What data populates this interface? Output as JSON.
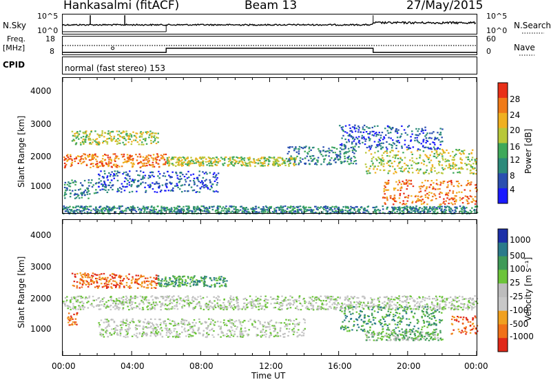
{
  "header": {
    "station": "Hankasalmi (fitACF)",
    "beam": "Beam 13",
    "date": "27/May/2015"
  },
  "strip": {
    "nsky_label": "N.Sky",
    "nsearch_label": "N.Search",
    "noise_ticks_left": [
      "10^5",
      "10^0"
    ],
    "noise_ticks_right": [
      "10^5",
      "10^0"
    ],
    "freq_label_1": "Freq.",
    "freq_label_2": "[MHz]",
    "freq_ticks_left": [
      "18",
      "8"
    ],
    "nave_ticks_right": [
      "60",
      "0"
    ],
    "nave_label": "Nave",
    "cpid_label": "CPID",
    "cpid_text": "normal (fast stereo) 153"
  },
  "chart_data": [
    {
      "type": "heatmap",
      "panel": "power",
      "ylabel": "Slant Range [km]",
      "yticks": [
        "1000",
        "2000",
        "3000",
        "4000"
      ],
      "ylim": [
        200,
        4600
      ],
      "xlim": [
        0,
        24
      ],
      "colorbar": {
        "label": "Power [dB]",
        "ticks": [
          "4",
          "8",
          "12",
          "16",
          "20",
          "24",
          "28"
        ],
        "colors": [
          "#1a1aff",
          "#2a4fb0",
          "#2c8a7a",
          "#3fa95a",
          "#b8c83a",
          "#f0b020",
          "#f07a18",
          "#e83018"
        ]
      },
      "bands": [
        {
          "x0": 0.0,
          "x1": 6.0,
          "y0": 1700,
          "y1": 2150,
          "level": 6
        },
        {
          "x0": 6.0,
          "x1": 13.5,
          "y0": 1750,
          "y1": 2050,
          "level": 4
        },
        {
          "x0": 0.5,
          "x1": 5.5,
          "y0": 2450,
          "y1": 2900,
          "level": 4
        },
        {
          "x0": 0.0,
          "x1": 2.0,
          "y0": 700,
          "y1": 1300,
          "level": 2
        },
        {
          "x0": 2.0,
          "x1": 9.0,
          "y0": 900,
          "y1": 1600,
          "level": 1
        },
        {
          "x0": 13.0,
          "x1": 17.0,
          "y0": 1800,
          "y1": 2400,
          "level": 2
        },
        {
          "x0": 17.5,
          "x1": 24.0,
          "y0": 1500,
          "y1": 2300,
          "level": 4
        },
        {
          "x0": 18.5,
          "x1": 24.0,
          "y0": 500,
          "y1": 1300,
          "level": 6
        },
        {
          "x0": 16.0,
          "x1": 22.0,
          "y0": 2300,
          "y1": 3100,
          "level": 1
        },
        {
          "x0": 0.0,
          "x1": 24.0,
          "y0": 200,
          "y1": 450,
          "level": 2
        }
      ]
    },
    {
      "type": "heatmap",
      "panel": "velocity",
      "ylabel": "Slant Range [km]",
      "xlabel": "Time UT",
      "yticks": [
        "1000",
        "2000",
        "3000",
        "4000"
      ],
      "xticks": [
        "00:00",
        "04:00",
        "08:00",
        "12:00",
        "16:00",
        "20:00",
        "00:00"
      ],
      "ylim": [
        200,
        4600
      ],
      "xlim": [
        0,
        24
      ],
      "colorbar": {
        "label": "Velocity [m s⁻¹]",
        "ticks": [
          "1000",
          "500",
          "100",
          "25",
          "-25",
          "-100",
          "-500",
          "-1000"
        ],
        "colors": [
          "#1c2fa8",
          "#2a7a8a",
          "#3f9a58",
          "#6cc43a",
          "#bdbdbd",
          "#c8c8c8",
          "#f0a020",
          "#f07018",
          "#e02818"
        ]
      },
      "bands": [
        {
          "x0": 0.0,
          "x1": 24.0,
          "y0": 1700,
          "y1": 2150,
          "level": 4
        },
        {
          "x0": 0.5,
          "x1": 5.5,
          "y0": 2400,
          "y1": 2900,
          "level": 7
        },
        {
          "x0": 5.5,
          "x1": 9.5,
          "y0": 2450,
          "y1": 2800,
          "level": 2
        },
        {
          "x0": 0.2,
          "x1": 0.8,
          "y0": 1200,
          "y1": 1600,
          "level": 7
        },
        {
          "x0": 17.5,
          "x1": 22.0,
          "y0": 700,
          "y1": 1000,
          "level": 3
        },
        {
          "x0": 16.0,
          "x1": 22.0,
          "y0": 1000,
          "y1": 1800,
          "level": 2
        },
        {
          "x0": 22.5,
          "x1": 24.0,
          "y0": 900,
          "y1": 1500,
          "level": 7
        },
        {
          "x0": 2.0,
          "x1": 14.0,
          "y0": 800,
          "y1": 1400,
          "level": 4
        }
      ]
    }
  ]
}
